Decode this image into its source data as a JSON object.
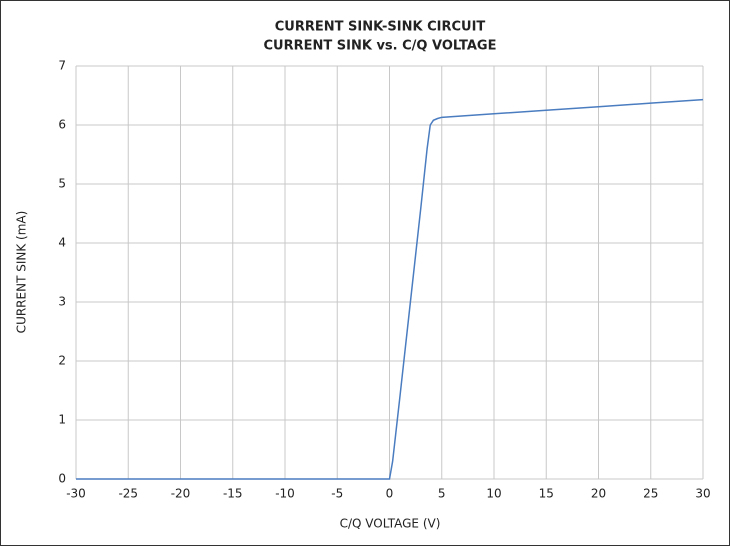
{
  "chart_data": {
    "type": "line",
    "title": "CURRENT SINK-SINK CIRCUIT",
    "subtitle": "CURRENT SINK vs. C/Q VOLTAGE",
    "x_label": "C/Q VOLTAGE (V)",
    "y_label": "CURRENT SINK (mA)",
    "x": [
      -30,
      -20,
      -10,
      0,
      0.3,
      1,
      2,
      3,
      3.6,
      3.9,
      4.2,
      4.6,
      5,
      10,
      15,
      20,
      25,
      30
    ],
    "series": [
      {
        "name": "CURRENT SINK",
        "color": "#4a7cc0",
        "values": [
          0,
          0,
          0,
          0,
          0.3,
          1.4,
          3.0,
          4.6,
          5.6,
          6.0,
          6.08,
          6.11,
          6.13,
          6.19,
          6.25,
          6.31,
          6.37,
          6.43
        ]
      }
    ],
    "xlim": [
      -30,
      30
    ],
    "xticks": [
      -30,
      -25,
      -20,
      -15,
      -10,
      -5,
      0,
      5,
      10,
      15,
      20,
      25,
      30
    ],
    "ylim": [
      0,
      7
    ],
    "yticks": [
      0,
      1,
      2,
      3,
      4,
      5,
      6,
      7
    ],
    "grid": true
  }
}
